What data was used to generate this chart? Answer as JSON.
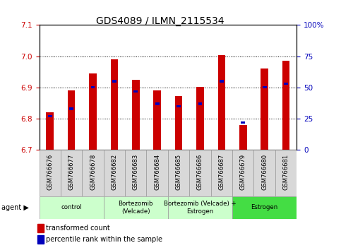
{
  "title": "GDS4089 / ILMN_2115534",
  "samples": [
    "GSM766676",
    "GSM766677",
    "GSM766678",
    "GSM766682",
    "GSM766683",
    "GSM766684",
    "GSM766685",
    "GSM766686",
    "GSM766687",
    "GSM766679",
    "GSM766680",
    "GSM766681"
  ],
  "red_values": [
    6.82,
    6.89,
    6.945,
    6.99,
    6.925,
    6.89,
    6.872,
    6.902,
    7.003,
    6.78,
    6.96,
    6.985
  ],
  "blue_values": [
    27,
    33,
    50,
    55,
    47,
    37,
    35,
    37,
    55,
    22,
    50,
    53
  ],
  "y_min": 6.7,
  "y_max": 7.1,
  "y_ticks_left": [
    6.7,
    6.8,
    6.9,
    7.0,
    7.1
  ],
  "y_ticks_right": [
    0,
    25,
    50,
    75,
    100
  ],
  "bar_color": "#cc0000",
  "blue_color": "#0000bb",
  "agent_groups": [
    {
      "label": "control",
      "start": 0,
      "end": 3,
      "light_green": true
    },
    {
      "label": "Bortezomib\n(Velcade)",
      "start": 3,
      "end": 6,
      "light_green": true
    },
    {
      "label": "Bortezomib (Velcade) +\nEstrogen",
      "start": 6,
      "end": 9,
      "light_green": true
    },
    {
      "label": "Estrogen",
      "start": 9,
      "end": 12,
      "light_green": false
    }
  ],
  "legend_items": [
    {
      "label": "transformed count",
      "color": "#cc0000"
    },
    {
      "label": "percentile rank within the sample",
      "color": "#0000bb"
    }
  ],
  "bar_width": 0.35,
  "tick_fontsize": 7.5,
  "title_fontsize": 10
}
